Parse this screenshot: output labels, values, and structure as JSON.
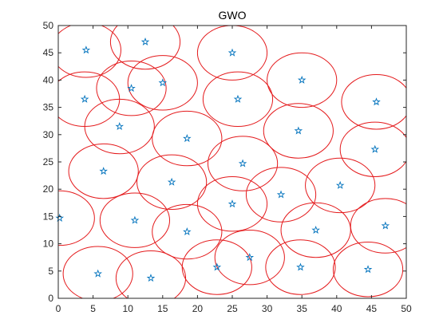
{
  "chart_data": {
    "type": "scatter",
    "title": "GWO",
    "xlabel": "",
    "ylabel": "",
    "xlim": [
      0,
      50
    ],
    "ylim": [
      0,
      50
    ],
    "xticks": [
      "0",
      "5",
      "10",
      "15",
      "20",
      "25",
      "30",
      "35",
      "40",
      "45",
      "50"
    ],
    "yticks": [
      "0",
      "5",
      "10",
      "15",
      "20",
      "25",
      "30",
      "35",
      "40",
      "45",
      "50"
    ],
    "grid": false,
    "legend": "none",
    "circle_radius": 5,
    "marker": "pentagram",
    "colors": {
      "circle": "#e41a1c",
      "marker": "#0072bd",
      "axis": "#262626"
    },
    "series": [
      {
        "points": [
          {
            "x": 4.0,
            "y": 45.5
          },
          {
            "x": 12.5,
            "y": 47.0
          },
          {
            "x": 25.0,
            "y": 45.0
          },
          {
            "x": 10.5,
            "y": 38.5
          },
          {
            "x": 15.0,
            "y": 39.5
          },
          {
            "x": 35.0,
            "y": 40.0
          },
          {
            "x": 3.8,
            "y": 36.5
          },
          {
            "x": 25.8,
            "y": 36.5
          },
          {
            "x": 45.7,
            "y": 36.0
          },
          {
            "x": 8.8,
            "y": 31.5
          },
          {
            "x": 18.5,
            "y": 29.3
          },
          {
            "x": 34.5,
            "y": 30.7
          },
          {
            "x": 45.5,
            "y": 27.3
          },
          {
            "x": 6.5,
            "y": 23.3
          },
          {
            "x": 26.5,
            "y": 24.7
          },
          {
            "x": 16.3,
            "y": 21.3
          },
          {
            "x": 40.5,
            "y": 20.7
          },
          {
            "x": 32.0,
            "y": 19.0
          },
          {
            "x": 25.0,
            "y": 17.3
          },
          {
            "x": 0.2,
            "y": 14.7
          },
          {
            "x": 11.0,
            "y": 14.3
          },
          {
            "x": 18.5,
            "y": 12.2
          },
          {
            "x": 37.0,
            "y": 12.5
          },
          {
            "x": 47.0,
            "y": 13.3
          },
          {
            "x": 27.5,
            "y": 7.5
          },
          {
            "x": 22.8,
            "y": 5.7
          },
          {
            "x": 34.8,
            "y": 5.7
          },
          {
            "x": 44.5,
            "y": 5.3
          },
          {
            "x": 5.7,
            "y": 4.5
          },
          {
            "x": 13.3,
            "y": 3.7
          }
        ]
      }
    ]
  }
}
